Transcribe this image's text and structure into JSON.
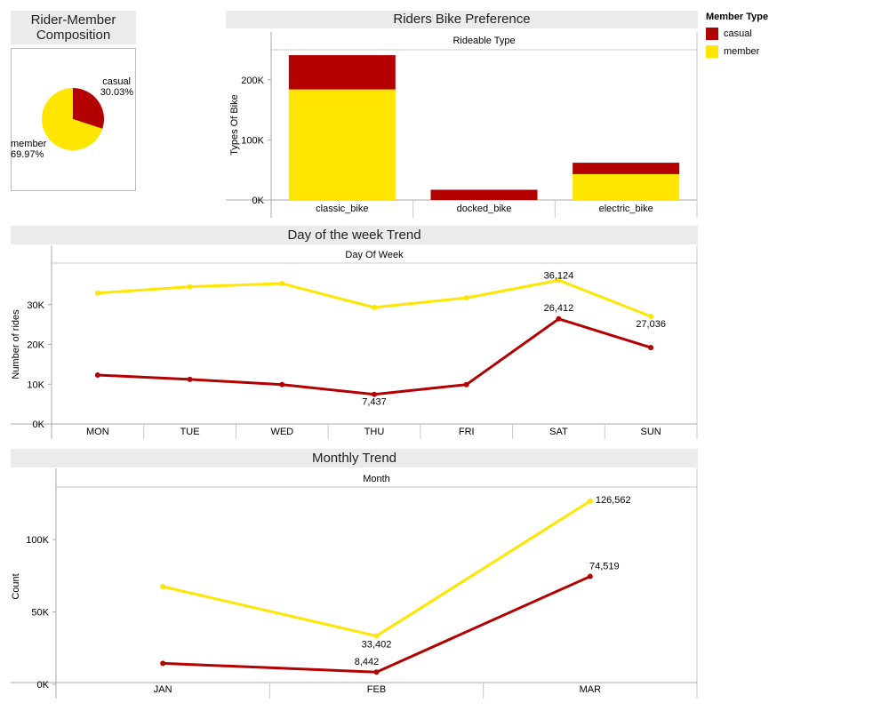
{
  "legend": {
    "title": "Member Type",
    "items": [
      {
        "label": "casual",
        "color": "#b30000"
      },
      {
        "label": "member",
        "color": "#ffe600"
      }
    ]
  },
  "chart_data": [
    {
      "id": "composition",
      "type": "pie",
      "title": "Rider-Member Composition",
      "slices": [
        {
          "label": "casual",
          "value": 30.03,
          "display": "30.03%",
          "color": "#b30000"
        },
        {
          "label": "member",
          "value": 69.97,
          "display": "69.97%",
          "color": "#ffe600"
        }
      ]
    },
    {
      "id": "bike",
      "type": "bar",
      "stacked": true,
      "title": "Riders Bike Preference",
      "header": "Rideable Type",
      "xlabel": "",
      "ylabel": "Types Of Bike",
      "categories": [
        "classic_bike",
        "docked_bike",
        "electric_bike"
      ],
      "series": [
        {
          "name": "member",
          "color": "#ffe600",
          "values": [
            184000,
            0,
            43000
          ]
        },
        {
          "name": "casual",
          "color": "#b30000",
          "values": [
            57000,
            17000,
            19000
          ]
        }
      ],
      "ylim": [
        0,
        250000
      ],
      "yticks": [
        {
          "v": 0,
          "label": "0K"
        },
        {
          "v": 100000,
          "label": "100K"
        },
        {
          "v": 200000,
          "label": "200K"
        }
      ]
    },
    {
      "id": "dow",
      "type": "line",
      "title": "Day of the week Trend",
      "header": "Day Of Week",
      "xlabel": "",
      "ylabel": "Number of rides",
      "categories": [
        "MON",
        "TUE",
        "WED",
        "THU",
        "FRI",
        "SAT",
        "SUN"
      ],
      "series": [
        {
          "name": "member",
          "color": "#ffe600",
          "values": [
            32900,
            34500,
            35300,
            29300,
            31700,
            36124,
            27036
          ],
          "labels": [
            null,
            null,
            null,
            null,
            null,
            "36,124",
            "27,036"
          ]
        },
        {
          "name": "casual",
          "color": "#b30000",
          "values": [
            12300,
            11200,
            9900,
            7437,
            9900,
            26412,
            19200
          ],
          "labels": [
            null,
            null,
            null,
            "7,437",
            null,
            "26,412",
            null
          ]
        }
      ],
      "ylim": [
        0,
        40000
      ],
      "yticks": [
        {
          "v": 0,
          "label": "0K"
        },
        {
          "v": 10000,
          "label": "10K"
        },
        {
          "v": 20000,
          "label": "20K"
        },
        {
          "v": 30000,
          "label": "30K"
        }
      ]
    },
    {
      "id": "month",
      "type": "line",
      "title": "Monthly Trend",
      "header": "Month",
      "xlabel": "",
      "ylabel": "Count",
      "categories": [
        "JAN",
        "FEB",
        "MAR"
      ],
      "series": [
        {
          "name": "member",
          "color": "#ffe600",
          "values": [
            67500,
            33402,
            126562
          ],
          "labels": [
            null,
            "33,402",
            "126,562"
          ]
        },
        {
          "name": "casual",
          "color": "#b30000",
          "values": [
            14500,
            8442,
            74519
          ],
          "labels": [
            null,
            "8,442",
            "74,519"
          ]
        }
      ],
      "ylim": [
        0,
        135000
      ],
      "yticks": [
        {
          "v": 0,
          "label": "0K"
        },
        {
          "v": 50000,
          "label": "50K"
        },
        {
          "v": 100000,
          "label": "100K"
        }
      ]
    }
  ]
}
